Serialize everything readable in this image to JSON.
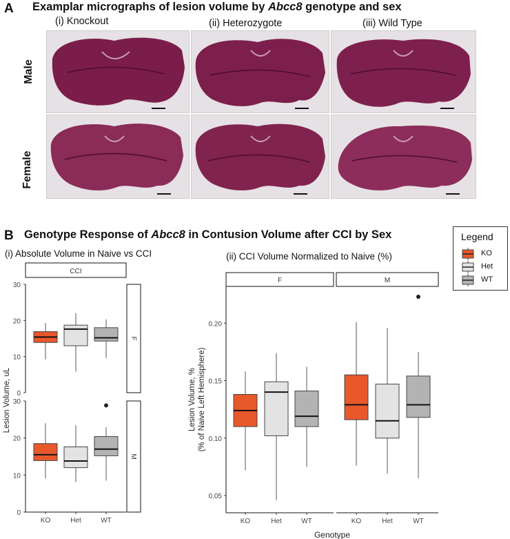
{
  "panel_a": {
    "letter": "A",
    "title_prefix": "Examplar micrographs of lesion volume by ",
    "title_gene": "Abcc8",
    "title_suffix": " genotype and sex",
    "columns": [
      "(i) Knockout",
      "(ii) Heterozygote",
      "(iii) Wild Type"
    ],
    "rows": [
      "Male",
      "Female"
    ]
  },
  "panel_b": {
    "letter": "B",
    "title_prefix": "Genotype Response of ",
    "title_gene": "Abcc8",
    "title_suffix": " in Contusion Volume after CCI by Sex",
    "sub_i": "(i) Absolute Volume in Naive vs CCI",
    "sub_ii": "(ii) CCI Volume  Normalized to Naive (%)"
  },
  "legend": {
    "title": "Legend",
    "items": [
      {
        "label": "KO",
        "color": "#e8582b"
      },
      {
        "label": "Het",
        "color": "#e3e3e3"
      },
      {
        "label": "WT",
        "color": "#b3b3b3"
      }
    ]
  },
  "colors": {
    "KO": "#e8582b",
    "Het": "#e3e3e3",
    "WT": "#b3b3b3"
  },
  "chart_data": [
    {
      "type": "box",
      "title": "(i) Absolute Volume in Naive vs CCI",
      "facet_col": "CCI",
      "facets": [
        "F",
        "M"
      ],
      "categories": [
        "KO",
        "Het",
        "WT"
      ],
      "ylabel": "Lesion Volume, uL",
      "ylim": [
        0,
        30
      ],
      "yticks": [
        0,
        10,
        20,
        30
      ],
      "series": [
        {
          "facet": "F",
          "category": "KO",
          "min": 9.2,
          "q1": 13.9,
          "median": 15.4,
          "q3": 16.9,
          "max": 19.3,
          "outliers": []
        },
        {
          "facet": "F",
          "category": "Het",
          "min": 5.8,
          "q1": 13.0,
          "median": 17.6,
          "q3": 18.7,
          "max": 22.0,
          "outliers": []
        },
        {
          "facet": "F",
          "category": "WT",
          "min": 9.6,
          "q1": 14.3,
          "median": 15.2,
          "q3": 18.0,
          "max": 20.3,
          "outliers": []
        },
        {
          "facet": "M",
          "category": "KO",
          "min": 9.1,
          "q1": 13.9,
          "median": 15.5,
          "q3": 18.5,
          "max": 24.0,
          "outliers": []
        },
        {
          "facet": "M",
          "category": "Het",
          "min": 8.1,
          "q1": 12.0,
          "median": 13.8,
          "q3": 17.6,
          "max": 23.4,
          "outliers": []
        },
        {
          "facet": "M",
          "category": "WT",
          "min": 8.5,
          "q1": 15.2,
          "median": 17.0,
          "q3": 20.4,
          "max": 22.9,
          "outliers": [
            28.8
          ]
        }
      ]
    },
    {
      "type": "box",
      "title": "(ii) CCI Volume  Normalized to Naive (%)",
      "facets": [
        "F",
        "M"
      ],
      "categories": [
        "KO",
        "Het",
        "WT"
      ],
      "xlabel": "Genotype",
      "ylabel": "Lesion Volume, %",
      "ylabel2": "(% of Naive Left Hemisphere)",
      "ylim": [
        0.035,
        0.232
      ],
      "yticks": [
        0.05,
        0.1,
        0.15,
        0.2
      ],
      "ytick_labels": [
        "0.05",
        "0.10",
        "0.15",
        "0.20"
      ],
      "series": [
        {
          "facet": "F",
          "category": "KO",
          "min": 0.072,
          "q1": 0.11,
          "median": 0.124,
          "q3": 0.138,
          "max": 0.158,
          "outliers": []
        },
        {
          "facet": "F",
          "category": "Het",
          "min": 0.046,
          "q1": 0.102,
          "median": 0.14,
          "q3": 0.149,
          "max": 0.174,
          "outliers": []
        },
        {
          "facet": "F",
          "category": "WT",
          "min": 0.075,
          "q1": 0.11,
          "median": 0.119,
          "q3": 0.141,
          "max": 0.162,
          "outliers": []
        },
        {
          "facet": "M",
          "category": "KO",
          "min": 0.076,
          "q1": 0.116,
          "median": 0.129,
          "q3": 0.155,
          "max": 0.201,
          "outliers": []
        },
        {
          "facet": "M",
          "category": "Het",
          "min": 0.069,
          "q1": 0.1,
          "median": 0.115,
          "q3": 0.147,
          "max": 0.196,
          "outliers": []
        },
        {
          "facet": "M",
          "category": "WT",
          "min": 0.065,
          "q1": 0.118,
          "median": 0.129,
          "q3": 0.154,
          "max": 0.175,
          "outliers": [
            0.223
          ]
        }
      ]
    }
  ]
}
